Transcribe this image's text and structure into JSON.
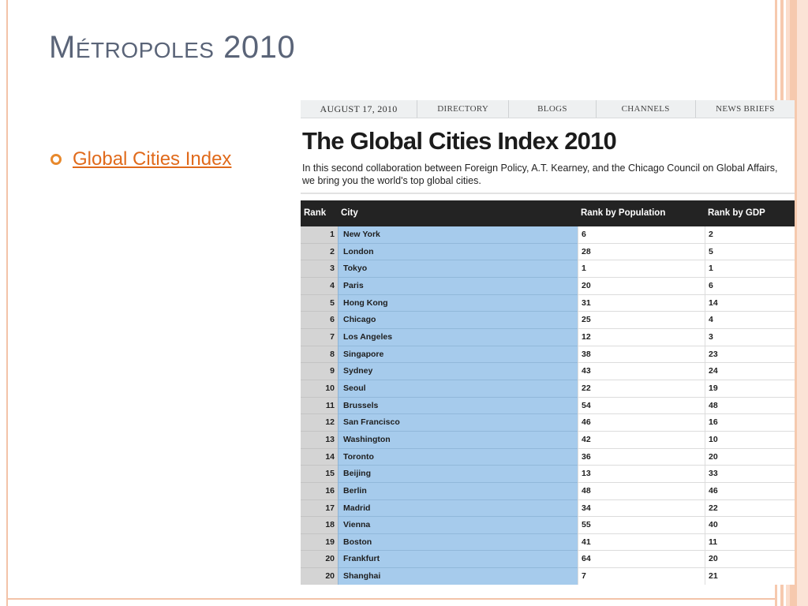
{
  "theme": {
    "accent": "#e06a1b",
    "frame": "#f3c3a8",
    "title_color": "#5a6478",
    "header_bg": "#232323",
    "city_col_bg": "#a6cbec"
  },
  "slide": {
    "title": "Métropoles 2010",
    "bullets": [
      {
        "icon": "ring-bullet-icon",
        "text": "Global Cities Index"
      }
    ]
  },
  "screenshot": {
    "nav": {
      "date": "AUGUST 17, 2010",
      "items": [
        "DIRECTORY",
        "BLOGS",
        "CHANNELS",
        "NEWS BRIEFS"
      ]
    },
    "headline": "The Global Cities Index 2010",
    "intro": "In this second collaboration between Foreign Policy, A.T. Kearney, and the Chicago Council on Global Affairs, we bring you the world's top global cities.",
    "table": {
      "headers": [
        "Rank",
        "City",
        "Rank by Population",
        "Rank by GDP"
      ],
      "rows": [
        {
          "rank": "1",
          "city": "New York",
          "pop": "6",
          "gdp": "2"
        },
        {
          "rank": "2",
          "city": "London",
          "pop": "28",
          "gdp": "5"
        },
        {
          "rank": "3",
          "city": "Tokyo",
          "pop": "1",
          "gdp": "1"
        },
        {
          "rank": "4",
          "city": "Paris",
          "pop": "20",
          "gdp": "6"
        },
        {
          "rank": "5",
          "city": "Hong Kong",
          "pop": "31",
          "gdp": "14"
        },
        {
          "rank": "6",
          "city": "Chicago",
          "pop": "25",
          "gdp": "4"
        },
        {
          "rank": "7",
          "city": "Los Angeles",
          "pop": "12",
          "gdp": "3"
        },
        {
          "rank": "8",
          "city": "Singapore",
          "pop": "38",
          "gdp": "23"
        },
        {
          "rank": "9",
          "city": "Sydney",
          "pop": "43",
          "gdp": "24"
        },
        {
          "rank": "10",
          "city": "Seoul",
          "pop": "22",
          "gdp": "19"
        },
        {
          "rank": "11",
          "city": "Brussels",
          "pop": "54",
          "gdp": "48"
        },
        {
          "rank": "12",
          "city": "San Francisco",
          "pop": "46",
          "gdp": "16"
        },
        {
          "rank": "13",
          "city": "Washington",
          "pop": "42",
          "gdp": "10"
        },
        {
          "rank": "14",
          "city": "Toronto",
          "pop": "36",
          "gdp": "20"
        },
        {
          "rank": "15",
          "city": "Beijing",
          "pop": "13",
          "gdp": "33"
        },
        {
          "rank": "16",
          "city": "Berlin",
          "pop": "48",
          "gdp": "46"
        },
        {
          "rank": "17",
          "city": "Madrid",
          "pop": "34",
          "gdp": "22"
        },
        {
          "rank": "18",
          "city": "Vienna",
          "pop": "55",
          "gdp": "40"
        },
        {
          "rank": "19",
          "city": "Boston",
          "pop": "41",
          "gdp": "11"
        },
        {
          "rank": "20",
          "city": "Frankfurt",
          "pop": "64",
          "gdp": "20"
        },
        {
          "rank": "20",
          "city": "Shanghai",
          "pop": "7",
          "gdp": "21"
        }
      ]
    }
  }
}
